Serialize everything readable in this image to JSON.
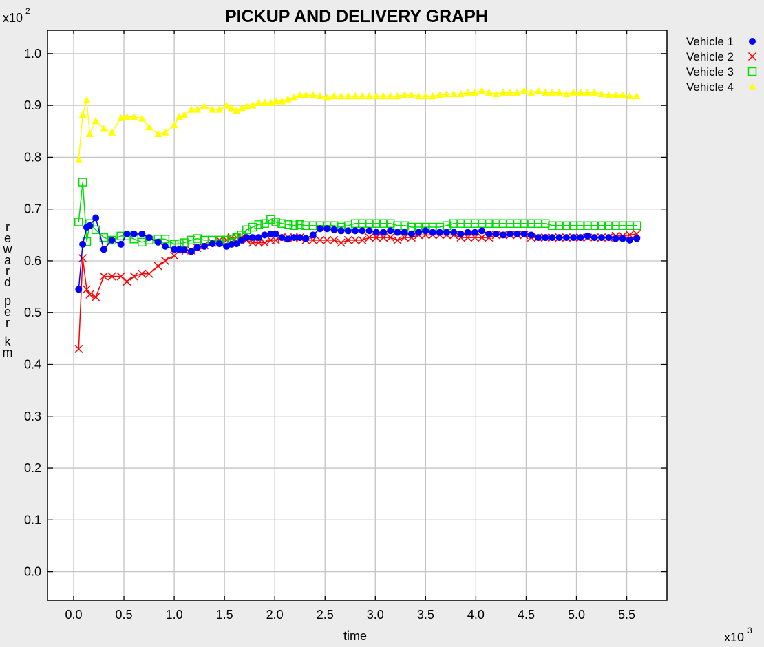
{
  "chart_data": {
    "type": "line",
    "title": "PICKUP AND DELIVERY GRAPH",
    "xlabel": "time",
    "ylabel": "reward per km",
    "x_multiplier": "x10",
    "x_multiplier_exp": "3",
    "y_multiplier": "x10",
    "y_multiplier_exp": "2",
    "xlim": [
      -0.26,
      5.9
    ],
    "ylim": [
      -0.055,
      1.045
    ],
    "x_ticks": [
      {
        "value": 0.0,
        "label": "0.0"
      },
      {
        "value": 0.5,
        "label": "0.5"
      },
      {
        "value": 1.0,
        "label": "1.0"
      },
      {
        "value": 1.5,
        "label": "1.5"
      },
      {
        "value": 2.0,
        "label": "2.0"
      },
      {
        "value": 2.5,
        "label": "2.5"
      },
      {
        "value": 3.0,
        "label": "3.0"
      },
      {
        "value": 3.5,
        "label": "3.5"
      },
      {
        "value": 4.0,
        "label": "4.0"
      },
      {
        "value": 4.5,
        "label": "4.5"
      },
      {
        "value": 5.0,
        "label": "5.0"
      },
      {
        "value": 5.5,
        "label": "5.5"
      }
    ],
    "y_ticks": [
      {
        "value": 0.0,
        "label": "0.0"
      },
      {
        "value": 0.1,
        "label": "0.1"
      },
      {
        "value": 0.2,
        "label": "0.2"
      },
      {
        "value": 0.3,
        "label": "0.3"
      },
      {
        "value": 0.4,
        "label": "0.4"
      },
      {
        "value": 0.5,
        "label": "0.5"
      },
      {
        "value": 0.6,
        "label": "0.6"
      },
      {
        "value": 0.7,
        "label": "0.7"
      },
      {
        "value": 0.8,
        "label": "0.8"
      },
      {
        "value": 0.9,
        "label": "0.9"
      },
      {
        "value": 1.0,
        "label": "1.0"
      }
    ],
    "grid": true,
    "legend_position": "top-right, outside plot",
    "series": [
      {
        "name": "Vehicle 1",
        "color": "#0000ff",
        "marker": "circle",
        "x": [
          0.05,
          0.09,
          0.13,
          0.16,
          0.22,
          0.3,
          0.38,
          0.47,
          0.53,
          0.6,
          0.68,
          0.75,
          0.84,
          0.91,
          1.0,
          1.05,
          1.1,
          1.17,
          1.23,
          1.3,
          1.38,
          1.45,
          1.52,
          1.57,
          1.62,
          1.67,
          1.72,
          1.78,
          1.84,
          1.9,
          1.96,
          2.01,
          2.07,
          2.13,
          2.19,
          2.25,
          2.31,
          2.38,
          2.45,
          2.52,
          2.59,
          2.66,
          2.73,
          2.8,
          2.87,
          2.94,
          3.01,
          3.08,
          3.15,
          3.22,
          3.29,
          3.36,
          3.43,
          3.5,
          3.57,
          3.64,
          3.71,
          3.78,
          3.85,
          3.92,
          3.99,
          4.06,
          4.13,
          4.2,
          4.27,
          4.34,
          4.41,
          4.48,
          4.55,
          4.62,
          4.69,
          4.76,
          4.83,
          4.9,
          4.97,
          5.04,
          5.11,
          5.18,
          5.25,
          5.32,
          5.39,
          5.46,
          5.53,
          5.6
        ],
        "y": [
          0.545,
          0.632,
          0.665,
          0.668,
          0.683,
          0.622,
          0.64,
          0.632,
          0.652,
          0.652,
          0.652,
          0.645,
          0.636,
          0.628,
          0.622,
          0.622,
          0.621,
          0.618,
          0.626,
          0.628,
          0.633,
          0.633,
          0.628,
          0.632,
          0.633,
          0.64,
          0.645,
          0.645,
          0.645,
          0.65,
          0.652,
          0.652,
          0.645,
          0.642,
          0.645,
          0.645,
          0.643,
          0.65,
          0.662,
          0.662,
          0.66,
          0.658,
          0.658,
          0.658,
          0.658,
          0.658,
          0.655,
          0.655,
          0.658,
          0.655,
          0.655,
          0.652,
          0.655,
          0.658,
          0.655,
          0.655,
          0.655,
          0.655,
          0.652,
          0.655,
          0.655,
          0.658,
          0.652,
          0.652,
          0.65,
          0.652,
          0.652,
          0.652,
          0.65,
          0.645,
          0.645,
          0.645,
          0.645,
          0.645,
          0.645,
          0.645,
          0.648,
          0.645,
          0.645,
          0.645,
          0.643,
          0.643,
          0.64,
          0.643
        ]
      },
      {
        "name": "Vehicle 2",
        "color": "#ff0000",
        "marker": "cross",
        "x": [
          0.05,
          0.09,
          0.13,
          0.16,
          0.22,
          0.3,
          0.38,
          0.47,
          0.53,
          0.6,
          0.68,
          0.75,
          0.84,
          0.91,
          1.0,
          1.05,
          1.1,
          1.17,
          1.23,
          1.3,
          1.38,
          1.45,
          1.52,
          1.57,
          1.62,
          1.67,
          1.72,
          1.78,
          1.84,
          1.9,
          1.96,
          2.01,
          2.07,
          2.13,
          2.19,
          2.25,
          2.31,
          2.38,
          2.45,
          2.52,
          2.59,
          2.66,
          2.73,
          2.8,
          2.87,
          2.94,
          3.01,
          3.08,
          3.15,
          3.22,
          3.29,
          3.36,
          3.43,
          3.5,
          3.57,
          3.64,
          3.71,
          3.78,
          3.85,
          3.92,
          3.99,
          4.06,
          4.13,
          4.2,
          4.27,
          4.34,
          4.41,
          4.48,
          4.55,
          4.62,
          4.69,
          4.76,
          4.83,
          4.9,
          4.97,
          5.04,
          5.11,
          5.18,
          5.25,
          5.32,
          5.39,
          5.46,
          5.53,
          5.6
        ],
        "y": [
          0.43,
          0.605,
          0.545,
          0.535,
          0.53,
          0.57,
          0.57,
          0.57,
          0.56,
          0.57,
          0.575,
          0.575,
          0.59,
          0.6,
          0.61,
          0.62,
          0.622,
          0.62,
          0.625,
          0.63,
          0.635,
          0.64,
          0.64,
          0.645,
          0.645,
          0.645,
          0.64,
          0.635,
          0.635,
          0.635,
          0.64,
          0.64,
          0.645,
          0.645,
          0.645,
          0.645,
          0.64,
          0.64,
          0.64,
          0.64,
          0.64,
          0.635,
          0.64,
          0.64,
          0.64,
          0.645,
          0.645,
          0.645,
          0.645,
          0.64,
          0.645,
          0.645,
          0.65,
          0.65,
          0.65,
          0.65,
          0.65,
          0.65,
          0.645,
          0.645,
          0.645,
          0.645,
          0.645,
          0.65,
          0.65,
          0.65,
          0.65,
          0.65,
          0.645,
          0.645,
          0.645,
          0.645,
          0.645,
          0.645,
          0.645,
          0.645,
          0.645,
          0.645,
          0.645,
          0.645,
          0.648,
          0.648,
          0.65,
          0.652
        ]
      },
      {
        "name": "Vehicle 3",
        "color": "#00dd00",
        "marker": "square",
        "x": [
          0.05,
          0.09,
          0.13,
          0.16,
          0.22,
          0.3,
          0.38,
          0.47,
          0.53,
          0.6,
          0.68,
          0.75,
          0.84,
          0.91,
          1.0,
          1.05,
          1.1,
          1.17,
          1.23,
          1.3,
          1.38,
          1.45,
          1.52,
          1.57,
          1.62,
          1.67,
          1.72,
          1.78,
          1.84,
          1.9,
          1.96,
          2.01,
          2.07,
          2.13,
          2.19,
          2.25,
          2.31,
          2.38,
          2.45,
          2.52,
          2.59,
          2.66,
          2.73,
          2.8,
          2.87,
          2.94,
          3.01,
          3.08,
          3.15,
          3.22,
          3.29,
          3.36,
          3.43,
          3.5,
          3.57,
          3.64,
          3.71,
          3.78,
          3.85,
          3.92,
          3.99,
          4.06,
          4.13,
          4.2,
          4.27,
          4.34,
          4.41,
          4.48,
          4.55,
          4.62,
          4.69,
          4.76,
          4.83,
          4.9,
          4.97,
          5.04,
          5.11,
          5.18,
          5.25,
          5.32,
          5.39,
          5.46,
          5.53,
          5.6
        ],
        "y": [
          0.675,
          0.752,
          0.637,
          0.672,
          0.66,
          0.645,
          0.64,
          0.648,
          0.648,
          0.642,
          0.636,
          0.64,
          0.642,
          0.642,
          0.632,
          0.633,
          0.635,
          0.64,
          0.643,
          0.64,
          0.64,
          0.64,
          0.64,
          0.642,
          0.645,
          0.65,
          0.66,
          0.665,
          0.67,
          0.672,
          0.68,
          0.675,
          0.672,
          0.67,
          0.668,
          0.67,
          0.668,
          0.668,
          0.668,
          0.668,
          0.668,
          0.665,
          0.668,
          0.672,
          0.672,
          0.672,
          0.672,
          0.672,
          0.672,
          0.668,
          0.668,
          0.665,
          0.665,
          0.665,
          0.665,
          0.665,
          0.668,
          0.672,
          0.672,
          0.672,
          0.672,
          0.672,
          0.672,
          0.672,
          0.672,
          0.672,
          0.672,
          0.672,
          0.672,
          0.672,
          0.672,
          0.668,
          0.668,
          0.668,
          0.668,
          0.668,
          0.668,
          0.668,
          0.668,
          0.668,
          0.668,
          0.668,
          0.668,
          0.668
        ]
      },
      {
        "name": "Vehicle 4",
        "color": "#ffff00",
        "marker": "triangle",
        "x": [
          0.05,
          0.09,
          0.13,
          0.16,
          0.22,
          0.3,
          0.38,
          0.47,
          0.53,
          0.6,
          0.68,
          0.75,
          0.84,
          0.91,
          1.0,
          1.05,
          1.1,
          1.17,
          1.23,
          1.3,
          1.38,
          1.45,
          1.52,
          1.57,
          1.62,
          1.67,
          1.72,
          1.78,
          1.84,
          1.9,
          1.96,
          2.01,
          2.07,
          2.13,
          2.19,
          2.25,
          2.31,
          2.38,
          2.45,
          2.52,
          2.59,
          2.66,
          2.73,
          2.8,
          2.87,
          2.94,
          3.01,
          3.08,
          3.15,
          3.22,
          3.29,
          3.36,
          3.43,
          3.5,
          3.57,
          3.64,
          3.71,
          3.78,
          3.85,
          3.92,
          3.99,
          4.06,
          4.13,
          4.2,
          4.27,
          4.34,
          4.41,
          4.48,
          4.55,
          4.62,
          4.69,
          4.76,
          4.83,
          4.9,
          4.97,
          5.04,
          5.11,
          5.18,
          5.25,
          5.32,
          5.39,
          5.46,
          5.53,
          5.6
        ],
        "y": [
          0.795,
          0.882,
          0.91,
          0.845,
          0.87,
          0.855,
          0.848,
          0.876,
          0.878,
          0.878,
          0.875,
          0.858,
          0.845,
          0.848,
          0.862,
          0.878,
          0.882,
          0.892,
          0.892,
          0.898,
          0.892,
          0.892,
          0.9,
          0.895,
          0.89,
          0.895,
          0.898,
          0.9,
          0.905,
          0.905,
          0.905,
          0.908,
          0.908,
          0.912,
          0.915,
          0.92,
          0.92,
          0.92,
          0.918,
          0.915,
          0.918,
          0.918,
          0.918,
          0.918,
          0.918,
          0.918,
          0.918,
          0.918,
          0.918,
          0.918,
          0.92,
          0.92,
          0.918,
          0.918,
          0.918,
          0.92,
          0.922,
          0.922,
          0.922,
          0.925,
          0.925,
          0.928,
          0.925,
          0.922,
          0.925,
          0.925,
          0.925,
          0.928,
          0.925,
          0.928,
          0.925,
          0.925,
          0.925,
          0.922,
          0.925,
          0.925,
          0.925,
          0.925,
          0.922,
          0.92,
          0.92,
          0.92,
          0.918,
          0.918
        ]
      }
    ]
  }
}
